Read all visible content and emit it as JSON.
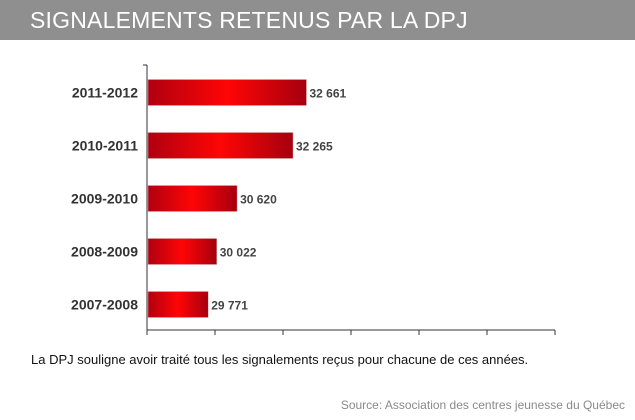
{
  "header": {
    "title": "SIGNALEMENTS RETENUS PAR LA DPJ"
  },
  "note": "La DPJ souligne avoir traité tous les signalements reçus pour chacune de ces années.",
  "source": "Source: Association des centres jeunesse du Québec",
  "colors": {
    "bar": "#ff0000",
    "bar_edge": "#b00010",
    "header": "#8f8f8f"
  },
  "chart_data": {
    "type": "bar",
    "orientation": "horizontal",
    "title": "SIGNALEMENTS RETENUS PAR LA DPJ",
    "categories": [
      "2011-2012",
      "2010-2011",
      "2009-2010",
      "2008-2009",
      "2007-2008"
    ],
    "values": [
      32661,
      32265,
      30620,
      30022,
      29771
    ],
    "value_labels": [
      "32 661",
      "32 265",
      "30 620",
      "30 022",
      "29 771"
    ],
    "xlim": [
      28000,
      40000
    ],
    "xtick_step": 2000,
    "xtick_labels_shown": false,
    "grid": false,
    "xlabel": "",
    "ylabel": ""
  }
}
